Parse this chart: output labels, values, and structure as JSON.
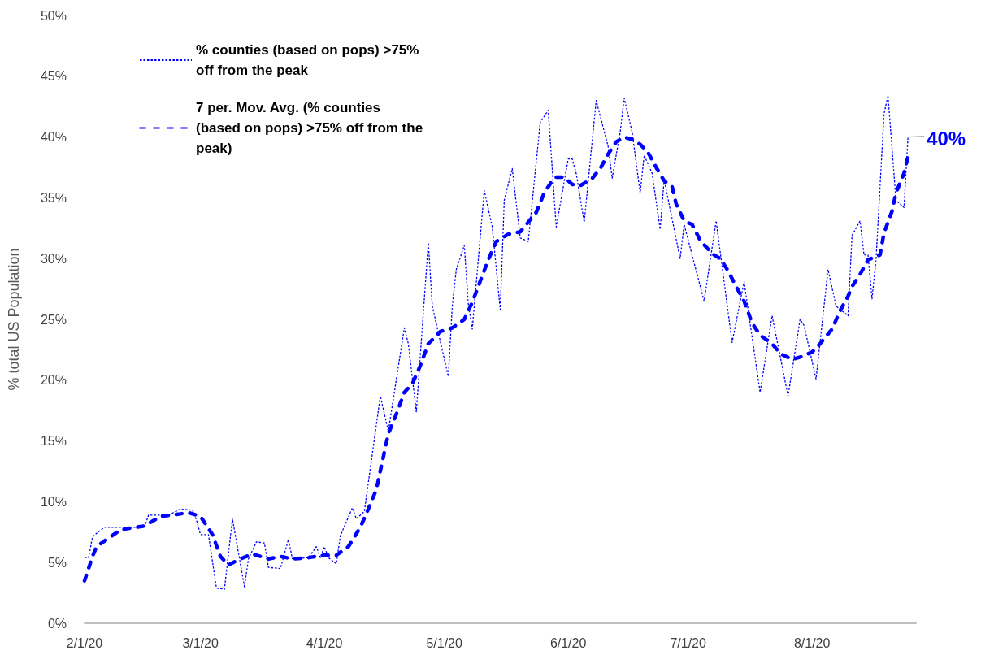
{
  "chart_data": {
    "type": "line",
    "ylabel": "% total US Population",
    "xlim": [
      "2020-02-01",
      "2020-08-27"
    ],
    "xticks": [
      {
        "value": "2020-02-01",
        "label": "2/1/20"
      },
      {
        "value": "2020-03-01",
        "label": "3/1/20"
      },
      {
        "value": "2020-04-01",
        "label": "4/1/20"
      },
      {
        "value": "2020-05-01",
        "label": "5/1/20"
      },
      {
        "value": "2020-06-01",
        "label": "6/1/20"
      },
      {
        "value": "2020-07-01",
        "label": "7/1/20"
      },
      {
        "value": "2020-08-01",
        "label": "8/1/20"
      }
    ],
    "ylim": [
      0,
      50
    ],
    "yticks": [
      {
        "value": 0,
        "label": "0%"
      },
      {
        "value": 5,
        "label": "5%"
      },
      {
        "value": 10,
        "label": "10%"
      },
      {
        "value": 15,
        "label": "15%"
      },
      {
        "value": 20,
        "label": "20%"
      },
      {
        "value": 25,
        "label": "25%"
      },
      {
        "value": 30,
        "label": "30%"
      },
      {
        "value": 35,
        "label": "35%"
      },
      {
        "value": 40,
        "label": "40%"
      },
      {
        "value": 45,
        "label": "45%"
      },
      {
        "value": 50,
        "label": "50%"
      }
    ],
    "grid": false,
    "legend": "top left",
    "marker": "none",
    "annotations": [
      {
        "text": "40%",
        "x": "2020-08-25",
        "y": 40
      }
    ],
    "series": [
      {
        "name": "% counties (based on pops) >75% off from the peak",
        "color": "#0000ff",
        "line_style": "dotted",
        "x": [
          "2020-02-01",
          "2020-02-02",
          "2020-02-03",
          "2020-02-04",
          "2020-02-06",
          "2020-02-16",
          "2020-02-17",
          "2020-02-22",
          "2020-02-25",
          "2020-02-28",
          "2020-02-29",
          "2020-03-01",
          "2020-03-03",
          "2020-03-05",
          "2020-03-07",
          "2020-03-09",
          "2020-03-12",
          "2020-03-13",
          "2020-03-15",
          "2020-03-17",
          "2020-03-18",
          "2020-03-21",
          "2020-03-23",
          "2020-03-24",
          "2020-03-28",
          "2020-03-30",
          "2020-03-31",
          "2020-04-01",
          "2020-04-02",
          "2020-04-04",
          "2020-04-05",
          "2020-04-08",
          "2020-04-09",
          "2020-04-11",
          "2020-04-15",
          "2020-04-17",
          "2020-04-21",
          "2020-04-22",
          "2020-04-24",
          "2020-04-27",
          "2020-04-28",
          "2020-05-02",
          "2020-05-03",
          "2020-05-04",
          "2020-05-06",
          "2020-05-07",
          "2020-05-08",
          "2020-05-11",
          "2020-05-13",
          "2020-05-15",
          "2020-05-16",
          "2020-05-18",
          "2020-05-20",
          "2020-05-22",
          "2020-05-25",
          "2020-05-27",
          "2020-05-29",
          "2020-06-01",
          "2020-06-02",
          "2020-06-03",
          "2020-06-05",
          "2020-06-08",
          "2020-06-11",
          "2020-06-12",
          "2020-06-14",
          "2020-06-15",
          "2020-06-17",
          "2020-06-19",
          "2020-06-20",
          "2020-06-22",
          "2020-06-24",
          "2020-06-25",
          "2020-06-29",
          "2020-06-30",
          "2020-07-05",
          "2020-07-08",
          "2020-07-12",
          "2020-07-15",
          "2020-07-19",
          "2020-07-22",
          "2020-07-26",
          "2020-07-29",
          "2020-07-30",
          "2020-08-02",
          "2020-08-05",
          "2020-08-07",
          "2020-08-10",
          "2020-08-11",
          "2020-08-13",
          "2020-08-14",
          "2020-08-15",
          "2020-08-16",
          "2020-08-17",
          "2020-08-19",
          "2020-08-20",
          "2020-08-22",
          "2020-08-24",
          "2020-08-25"
        ],
        "values": [
          5.4,
          5.4,
          7.1,
          7.4,
          7.9,
          7.9,
          8.9,
          8.9,
          9.4,
          9.3,
          8.5,
          7.3,
          7.3,
          2.9,
          2.8,
          8.6,
          3.0,
          5.3,
          6.7,
          6.6,
          4.6,
          4.5,
          6.9,
          5.3,
          5.4,
          6.3,
          5.4,
          6.3,
          5.4,
          4.9,
          7.2,
          9.5,
          8.6,
          9.2,
          18.7,
          15.8,
          24.3,
          23.0,
          17.4,
          31.3,
          26.1,
          20.3,
          26.1,
          29.1,
          31.1,
          26.3,
          24.2,
          35.6,
          32.6,
          25.8,
          34.8,
          37.4,
          31.7,
          31.4,
          41.2,
          42.2,
          32.6,
          38.2,
          38.2,
          37.0,
          33.0,
          43.0,
          39.2,
          36.6,
          40.4,
          43.2,
          40.4,
          35.4,
          38.5,
          37.0,
          32.4,
          36.5,
          30.0,
          32.8,
          26.5,
          33.1,
          23.1,
          28.1,
          19.0,
          25.3,
          18.7,
          25.0,
          24.5,
          20.1,
          29.1,
          26.1,
          25.3,
          31.9,
          33.1,
          30.3,
          30.3,
          26.7,
          29.9,
          41.9,
          43.4,
          34.8,
          34.2,
          40.0
        ]
      },
      {
        "name": "7 per. Mov. Avg. (% counties (based on pops) >75% off from the peak)",
        "color": "#0000ff",
        "line_style": "dashed",
        "x": [
          "2020-02-01",
          "2020-02-03",
          "2020-02-04",
          "2020-02-07",
          "2020-02-10",
          "2020-02-14",
          "2020-02-16",
          "2020-02-20",
          "2020-02-25",
          "2020-02-27",
          "2020-03-01",
          "2020-03-04",
          "2020-03-06",
          "2020-03-08",
          "2020-03-11",
          "2020-03-14",
          "2020-03-18",
          "2020-03-21",
          "2020-03-24",
          "2020-03-28",
          "2020-04-01",
          "2020-04-04",
          "2020-04-07",
          "2020-04-10",
          "2020-04-12",
          "2020-04-14",
          "2020-04-17",
          "2020-04-19",
          "2020-04-21",
          "2020-04-23",
          "2020-04-25",
          "2020-04-27",
          "2020-04-30",
          "2020-05-03",
          "2020-05-06",
          "2020-05-08",
          "2020-05-12",
          "2020-05-14",
          "2020-05-17",
          "2020-05-20",
          "2020-05-22",
          "2020-05-24",
          "2020-05-26",
          "2020-05-28",
          "2020-05-29",
          "2020-05-31",
          "2020-06-02",
          "2020-06-04",
          "2020-06-07",
          "2020-06-09",
          "2020-06-11",
          "2020-06-13",
          "2020-06-15",
          "2020-06-17",
          "2020-06-19",
          "2020-06-21",
          "2020-06-23",
          "2020-06-25",
          "2020-06-27",
          "2020-06-28",
          "2020-06-30",
          "2020-07-02",
          "2020-07-04",
          "2020-07-07",
          "2020-07-09",
          "2020-07-11",
          "2020-07-13",
          "2020-07-15",
          "2020-07-17",
          "2020-07-19",
          "2020-07-22",
          "2020-07-24",
          "2020-07-27",
          "2020-07-29",
          "2020-08-01",
          "2020-08-03",
          "2020-08-06",
          "2020-08-08",
          "2020-08-10",
          "2020-08-11",
          "2020-08-13",
          "2020-08-15",
          "2020-08-18",
          "2020-08-19",
          "2020-08-21",
          "2020-08-22",
          "2020-08-24",
          "2020-08-25"
        ],
        "values": [
          3.5,
          5.5,
          6.3,
          7.0,
          7.7,
          7.9,
          8.0,
          8.8,
          9.0,
          9.1,
          8.8,
          7.3,
          5.5,
          4.8,
          5.3,
          5.7,
          5.3,
          5.5,
          5.3,
          5.4,
          5.6,
          5.6,
          6.3,
          7.9,
          9.4,
          11.0,
          15.6,
          17.2,
          19.0,
          19.7,
          21.2,
          23.0,
          24.0,
          24.3,
          25.0,
          26.4,
          29.9,
          31.4,
          32.0,
          32.2,
          33.0,
          33.8,
          35.4,
          36.4,
          36.7,
          36.7,
          36.1,
          36.0,
          36.6,
          37.4,
          38.6,
          39.6,
          40.0,
          39.8,
          39.4,
          38.7,
          37.5,
          36.4,
          35.9,
          34.5,
          33.1,
          32.8,
          31.5,
          30.4,
          30.0,
          29.0,
          27.7,
          26.5,
          24.7,
          23.7,
          23.0,
          22.2,
          21.7,
          21.9,
          22.3,
          23.0,
          24.2,
          25.7,
          26.9,
          27.7,
          28.7,
          29.9,
          30.3,
          32.1,
          33.9,
          35.4,
          37.0,
          38.4
        ]
      }
    ]
  }
}
